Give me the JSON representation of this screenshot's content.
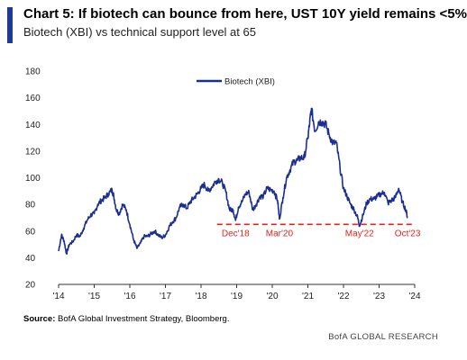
{
  "header": {
    "title": "Chart 5: If biotech can bounce from here, UST 10Y yield remains <5%",
    "subtitle": "Biotech (XBI) vs technical support level at 65"
  },
  "footer": {
    "source_label": "Source:",
    "source_text": " BofA Global Investment Strategy, Bloomberg.",
    "brand": "BofA GLOBAL RESEARCH"
  },
  "chart_data": {
    "type": "line",
    "ylim": [
      20,
      180
    ],
    "y_ticks": [
      20,
      40,
      60,
      80,
      100,
      120,
      140,
      160,
      180
    ],
    "xlim": [
      2014.0,
      2024.0
    ],
    "x_ticks": [
      {
        "x": 2014,
        "label": "'14"
      },
      {
        "x": 2015,
        "label": "'15"
      },
      {
        "x": 2016,
        "label": "'16"
      },
      {
        "x": 2017,
        "label": "'17"
      },
      {
        "x": 2018,
        "label": "'18"
      },
      {
        "x": 2019,
        "label": "'19"
      },
      {
        "x": 2020,
        "label": "'20"
      },
      {
        "x": 2021,
        "label": "'21"
      },
      {
        "x": 2022,
        "label": "'22"
      },
      {
        "x": 2023,
        "label": "'23"
      },
      {
        "x": 2024,
        "label": "'24"
      }
    ],
    "series": [
      {
        "name": "Biotech (XBI)",
        "color": "#1a2f8f",
        "x": [
          2014.0,
          2014.08,
          2014.15,
          2014.22,
          2014.3,
          2014.4,
          2014.5,
          2014.6,
          2014.7,
          2014.8,
          2014.9,
          2015.0,
          2015.1,
          2015.2,
          2015.3,
          2015.4,
          2015.5,
          2015.55,
          2015.62,
          2015.7,
          2015.8,
          2015.9,
          2016.0,
          2016.1,
          2016.2,
          2016.3,
          2016.4,
          2016.5,
          2016.6,
          2016.7,
          2016.8,
          2016.9,
          2017.0,
          2017.1,
          2017.2,
          2017.3,
          2017.4,
          2017.5,
          2017.6,
          2017.7,
          2017.8,
          2017.9,
          2018.0,
          2018.1,
          2018.2,
          2018.3,
          2018.4,
          2018.5,
          2018.6,
          2018.7,
          2018.8,
          2018.9,
          2018.97,
          2019.05,
          2019.15,
          2019.25,
          2019.35,
          2019.45,
          2019.55,
          2019.65,
          2019.75,
          2019.85,
          2019.95,
          2020.05,
          2020.15,
          2020.2,
          2020.3,
          2020.4,
          2020.5,
          2020.6,
          2020.7,
          2020.8,
          2020.9,
          2021.0,
          2021.05,
          2021.1,
          2021.2,
          2021.3,
          2021.4,
          2021.5,
          2021.6,
          2021.7,
          2021.8,
          2021.9,
          2022.0,
          2022.1,
          2022.2,
          2022.3,
          2022.4,
          2022.45,
          2022.55,
          2022.65,
          2022.75,
          2022.85,
          2022.95,
          2023.05,
          2023.15,
          2023.25,
          2023.35,
          2023.45,
          2023.55,
          2023.65,
          2023.75,
          2023.8
        ],
        "y": [
          45,
          57,
          53,
          43,
          50,
          52,
          57,
          56,
          62,
          68,
          72,
          73,
          80,
          83,
          85,
          88,
          91,
          86,
          76,
          73,
          80,
          76,
          65,
          54,
          47,
          51,
          56,
          56,
          58,
          60,
          57,
          55,
          57,
          63,
          67,
          70,
          78,
          80,
          77,
          82,
          85,
          88,
          92,
          95,
          90,
          93,
          97,
          99,
          96,
          89,
          76,
          76,
          68,
          78,
          82,
          88,
          89,
          76,
          80,
          86,
          86,
          92,
          91,
          90,
          83,
          69,
          85,
          100,
          106,
          112,
          113,
          115,
          115,
          130,
          141,
          152,
          135,
          142,
          142,
          140,
          132,
          126,
          126,
          108,
          92,
          86,
          80,
          76,
          70,
          64,
          72,
          81,
          84,
          84,
          86,
          88,
          89,
          81,
          83,
          85,
          92,
          82,
          76,
          70
        ]
      }
    ],
    "support_level": {
      "y": 65,
      "x_start": 2018.45,
      "x_end": 2023.95,
      "color": "#e0231c"
    },
    "annotations": [
      {
        "label": "Dec'18",
        "x": 2018.97
      },
      {
        "label": "Mar'20",
        "x": 2020.2
      },
      {
        "label": "May'22",
        "x": 2022.45
      },
      {
        "label": "Oct'23",
        "x": 2023.8
      }
    ],
    "legend": {
      "position": "top-center"
    },
    "grid": false
  }
}
